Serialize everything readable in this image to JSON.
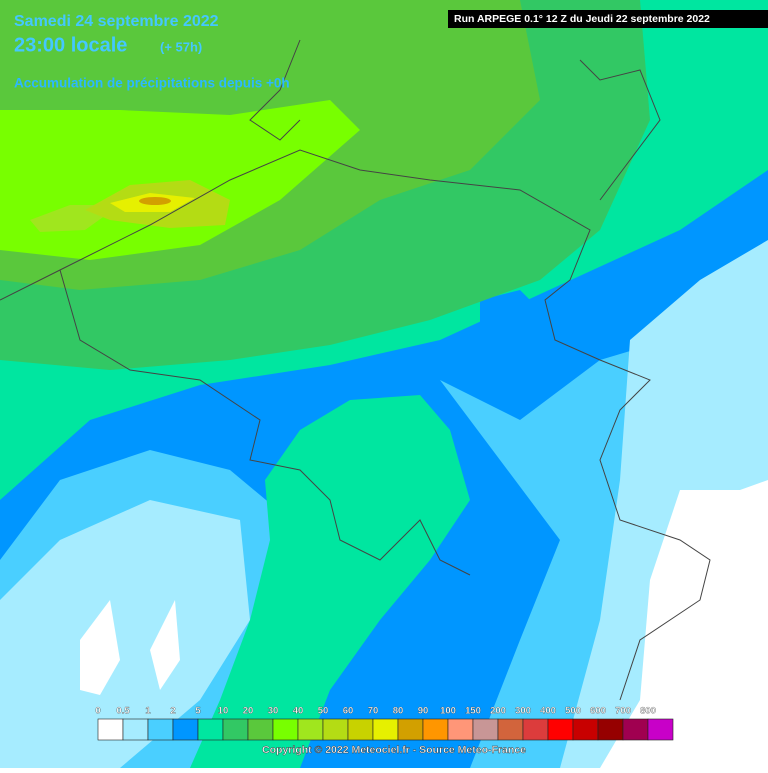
{
  "header": {
    "date": "Samedi 24 septembre 2022",
    "time": "23:00 locale",
    "lead": "(+ 57h)",
    "subtitle": "Accumulation de précipitations depuis +0h"
  },
  "run_info": "Run ARPEGE 0.1° 12 Z du Jeudi 22 septembre 2022",
  "legend": {
    "items": [
      {
        "label": "0",
        "color": "#ffffff"
      },
      {
        "label": "0.5",
        "color": "#a6ecff"
      },
      {
        "label": "1",
        "color": "#4acfff"
      },
      {
        "label": "2",
        "color": "#0096ff"
      },
      {
        "label": "5",
        "color": "#00e6a0"
      },
      {
        "label": "10",
        "color": "#32c864"
      },
      {
        "label": "20",
        "color": "#5ac83c"
      },
      {
        "label": "30",
        "color": "#78ff00"
      },
      {
        "label": "40",
        "color": "#a0e61e"
      },
      {
        "label": "50",
        "color": "#b4dc14"
      },
      {
        "label": "60",
        "color": "#c8d200"
      },
      {
        "label": "70",
        "color": "#e6f000"
      },
      {
        "label": "80",
        "color": "#d2a000"
      },
      {
        "label": "90",
        "color": "#ff9600"
      },
      {
        "label": "100",
        "color": "#ff9678"
      },
      {
        "label": "150",
        "color": "#c89696"
      },
      {
        "label": "200",
        "color": "#d2643c"
      },
      {
        "label": "300",
        "color": "#dc3c3c"
      },
      {
        "label": "400",
        "color": "#ff0000"
      },
      {
        "label": "500",
        "color": "#c80000"
      },
      {
        "label": "600",
        "color": "#960000"
      },
      {
        "label": "700",
        "color": "#a00050"
      },
      {
        "label": "800",
        "color": "#c800c8"
      }
    ]
  },
  "copyright": "Copyright © 2022 Meteociel.fr - Source Meteo-France"
}
